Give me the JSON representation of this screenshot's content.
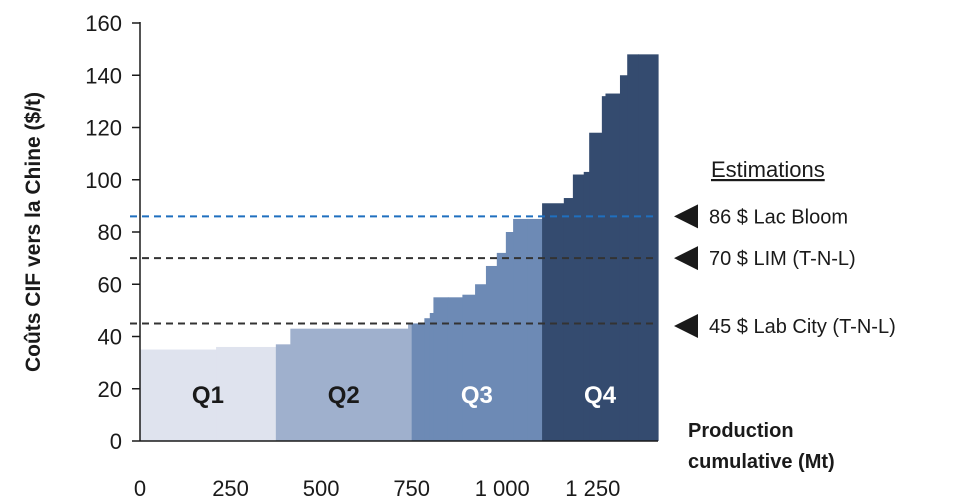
{
  "chart_data": {
    "type": "area",
    "ylabel": "Coûts CIF vers la Chine ($/t)",
    "xlabel_line1": "Production",
    "xlabel_line2": "cumulative (Mt)",
    "x_ticks": [
      "0",
      "250",
      "500",
      "750",
      "1 000",
      "1 250"
    ],
    "x_tick_values": [
      0,
      250,
      500,
      750,
      1000,
      1250
    ],
    "y_ticks": [
      "0",
      "20",
      "40",
      "60",
      "80",
      "100",
      "120",
      "140",
      "160"
    ],
    "y_tick_values": [
      0,
      20,
      40,
      60,
      80,
      100,
      120,
      140,
      160
    ],
    "xlim": [
      0,
      1430
    ],
    "ylim": [
      0,
      160
    ],
    "grid": false,
    "quartiles": [
      {
        "name": "Q1",
        "color": "#dfe3ee",
        "label_color": "#1a1a1a",
        "steps": [
          [
            0,
            35
          ],
          [
            210,
            36
          ],
          [
            375,
            36
          ]
        ]
      },
      {
        "name": "Q2",
        "color": "#9fb0cd",
        "label_color": "#1a1a1a",
        "steps": [
          [
            375,
            37
          ],
          [
            415,
            43
          ],
          [
            740,
            45
          ],
          [
            750,
            45
          ]
        ]
      },
      {
        "name": "Q3",
        "color": "#6d8ab5",
        "label_color": "#ffffff",
        "steps": [
          [
            750,
            45
          ],
          [
            785,
            47
          ],
          [
            800,
            49
          ],
          [
            810,
            55
          ],
          [
            850,
            55
          ],
          [
            890,
            56
          ],
          [
            925,
            60
          ],
          [
            955,
            67
          ],
          [
            985,
            72
          ],
          [
            1010,
            80
          ],
          [
            1030,
            85
          ],
          [
            1070,
            85
          ],
          [
            1110,
            85
          ]
        ]
      },
      {
        "name": "Q4",
        "color": "#344b6f",
        "label_color": "#ffffff",
        "steps": [
          [
            1110,
            91
          ],
          [
            1170,
            93
          ],
          [
            1195,
            102
          ],
          [
            1225,
            103
          ],
          [
            1240,
            118
          ],
          [
            1275,
            132
          ],
          [
            1285,
            133
          ],
          [
            1325,
            140
          ],
          [
            1345,
            148
          ],
          [
            1375,
            148
          ],
          [
            1430,
            148
          ]
        ]
      }
    ],
    "reference_lines": [
      {
        "value": 86,
        "color": "#1f6fbf",
        "label": "86 $ Lac Bloom"
      },
      {
        "value": 70,
        "color": "#333333",
        "label": "70 $ LIM (T-N-L)"
      },
      {
        "value": 45,
        "color": "#333333",
        "label": "45 $ Lab City (T-N-L)"
      }
    ],
    "annotations_title": "Estimations",
    "colors": {
      "axis": "#1a1a1a",
      "marker": "#1a1a1a"
    }
  }
}
